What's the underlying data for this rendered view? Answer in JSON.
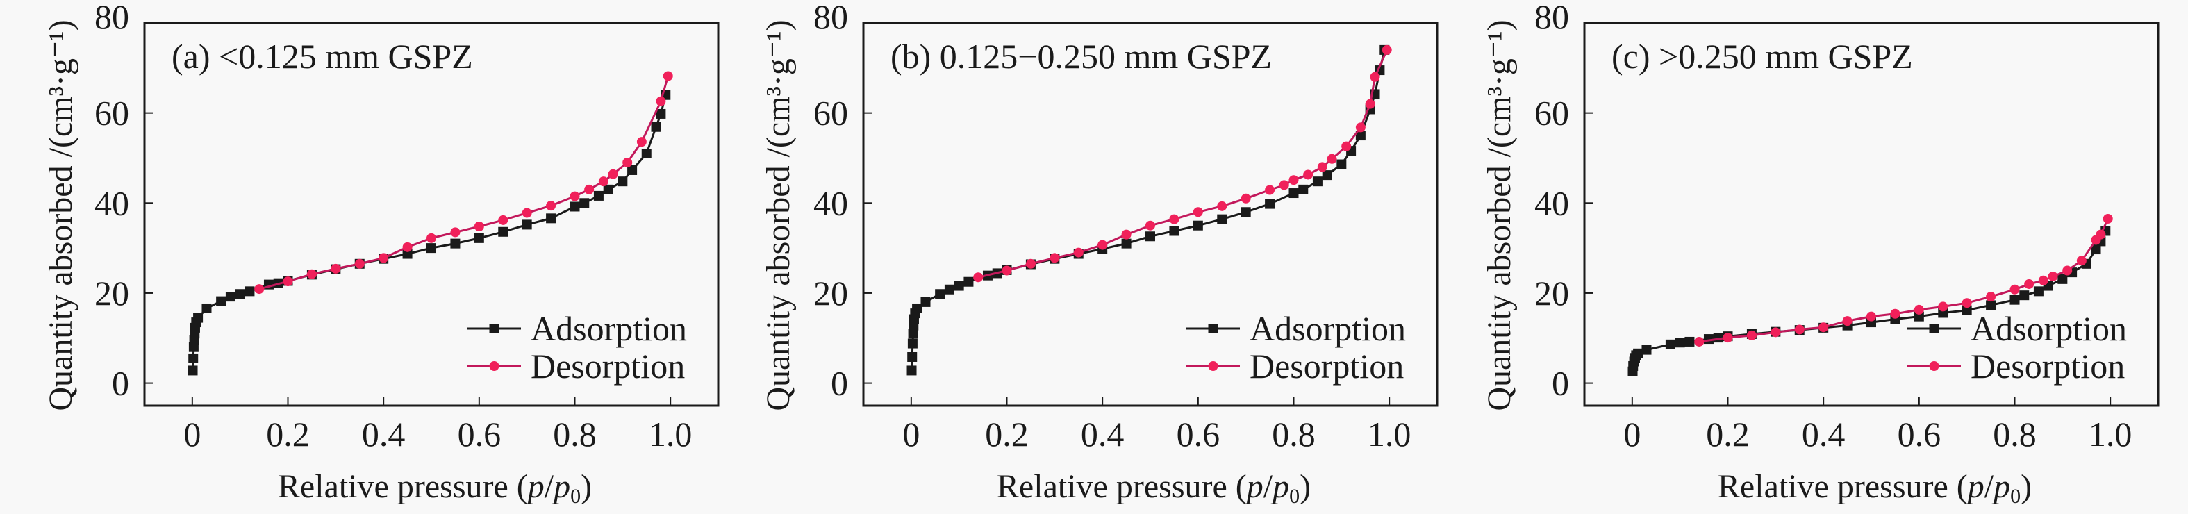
{
  "figure": {
    "colors": {
      "adsorption_line": "#1a1a1a",
      "adsorption_marker": "#1a1a1a",
      "desorption_line": "#c2185b",
      "desorption_marker": "#f0205a",
      "frame": "#1a1a1a"
    }
  },
  "chart_data": [
    {
      "type": "line",
      "panel": "a",
      "title": "(a) <0.125 mm GSPZ",
      "xlabel": "Relative pressure (p/p0)",
      "xlabel_parts": {
        "prefix": "Relative pressure (",
        "p": "p",
        "slash": "/",
        "p0": "p",
        "sub": "0",
        "suffix": ")"
      },
      "ylabel": "Quantity absorbed /(cm³·g⁻¹)",
      "xlim": [
        -0.1,
        1.1
      ],
      "ylim": [
        -5,
        80
      ],
      "xticks": [
        0,
        0.2,
        0.4,
        0.6,
        0.8,
        1.0
      ],
      "xtick_labels": [
        "0",
        "0.2",
        "0.4",
        "0.6",
        "0.8",
        "1.0"
      ],
      "yticks": [
        0,
        20,
        40,
        60,
        80
      ],
      "ytick_labels": [
        "0",
        "20",
        "40",
        "60",
        "80"
      ],
      "grid": false,
      "legend_position": "bottom-right",
      "series": [
        {
          "name": "Adsorption",
          "marker": "square",
          "x": [
            0.001,
            0.002,
            0.003,
            0.004,
            0.005,
            0.006,
            0.008,
            0.012,
            0.03,
            0.06,
            0.08,
            0.1,
            0.12,
            0.16,
            0.18,
            0.2,
            0.25,
            0.3,
            0.35,
            0.4,
            0.45,
            0.5,
            0.55,
            0.6,
            0.65,
            0.7,
            0.75,
            0.8,
            0.82,
            0.85,
            0.87,
            0.9,
            0.92,
            0.95,
            0.97,
            0.98,
            0.99
          ],
          "y": [
            2.8,
            5.5,
            8.0,
            9.5,
            11.0,
            12.3,
            13.5,
            14.5,
            16.6,
            18.2,
            19.2,
            19.8,
            20.4,
            21.9,
            22.2,
            22.7,
            24.1,
            25.3,
            26.5,
            27.6,
            28.7,
            30.0,
            31.0,
            32.2,
            33.6,
            35.2,
            36.6,
            39.2,
            40.0,
            41.6,
            43.0,
            44.8,
            47.3,
            51.0,
            56.9,
            59.8,
            64.0
          ]
        },
        {
          "name": "Desorption",
          "marker": "circle",
          "x": [
            0.995,
            0.98,
            0.94,
            0.91,
            0.88,
            0.86,
            0.83,
            0.8,
            0.75,
            0.7,
            0.65,
            0.6,
            0.55,
            0.5,
            0.45,
            0.4,
            0.35,
            0.3,
            0.25,
            0.2,
            0.14
          ],
          "y": [
            68.2,
            62.6,
            53.6,
            49.0,
            46.4,
            44.8,
            43.0,
            41.5,
            39.4,
            37.8,
            36.2,
            34.8,
            33.5,
            32.2,
            30.2,
            27.8,
            26.5,
            25.4,
            24.2,
            22.6,
            20.9
          ]
        }
      ]
    },
    {
      "type": "line",
      "panel": "b",
      "title": "(b) 0.125−0.250 mm GSPZ",
      "xlabel": "Relative pressure (p/p0)",
      "xlabel_parts": {
        "prefix": "Relative pressure (",
        "p": "p",
        "slash": "/",
        "p0": "p",
        "sub": "0",
        "suffix": ")"
      },
      "ylabel": "Quantity absorbed /(cm³·g⁻¹)",
      "xlim": [
        -0.1,
        1.1
      ],
      "ylim": [
        -5,
        80
      ],
      "xticks": [
        0,
        0.2,
        0.4,
        0.6,
        0.8,
        1.0
      ],
      "xtick_labels": [
        "0",
        "0.2",
        "0.4",
        "0.6",
        "0.8",
        "1.0"
      ],
      "yticks": [
        0,
        20,
        40,
        60,
        80
      ],
      "ytick_labels": [
        "0",
        "20",
        "40",
        "60",
        "80"
      ],
      "grid": false,
      "legend_position": "bottom-right",
      "series": [
        {
          "name": "Adsorption",
          "marker": "square",
          "x": [
            0.001,
            0.002,
            0.003,
            0.004,
            0.005,
            0.006,
            0.008,
            0.012,
            0.03,
            0.06,
            0.08,
            0.1,
            0.12,
            0.16,
            0.18,
            0.2,
            0.25,
            0.3,
            0.35,
            0.4,
            0.45,
            0.5,
            0.55,
            0.6,
            0.65,
            0.7,
            0.75,
            0.8,
            0.82,
            0.85,
            0.87,
            0.9,
            0.92,
            0.94,
            0.96,
            0.97,
            0.98,
            0.99
          ],
          "y": [
            2.8,
            5.8,
            8.8,
            11.0,
            12.8,
            14.2,
            15.5,
            16.6,
            18.0,
            19.8,
            20.8,
            21.6,
            22.5,
            23.9,
            24.4,
            25.1,
            26.4,
            27.6,
            28.7,
            29.8,
            31.0,
            32.6,
            33.8,
            35.0,
            36.4,
            38.0,
            39.8,
            42.2,
            43.0,
            44.8,
            46.2,
            48.6,
            51.6,
            55.0,
            60.8,
            64.2,
            69.5,
            74.0
          ]
        },
        {
          "name": "Desorption",
          "marker": "circle",
          "x": [
            0.995,
            0.97,
            0.96,
            0.94,
            0.91,
            0.88,
            0.86,
            0.83,
            0.8,
            0.78,
            0.75,
            0.7,
            0.65,
            0.6,
            0.55,
            0.5,
            0.45,
            0.4,
            0.35,
            0.3,
            0.25,
            0.2,
            0.14
          ],
          "y": [
            74.0,
            68.0,
            62.0,
            56.8,
            52.6,
            49.8,
            48.0,
            46.3,
            45.1,
            44.0,
            42.9,
            41.0,
            39.3,
            38.0,
            36.4,
            35.0,
            33.0,
            30.7,
            29.0,
            27.8,
            26.5,
            25.0,
            23.5
          ]
        }
      ]
    },
    {
      "type": "line",
      "panel": "c",
      "title": "(c) >0.250 mm GSPZ",
      "xlabel": "Relative pressure (p/p0)",
      "xlabel_parts": {
        "prefix": "Relative pressure (",
        "p": "p",
        "slash": "/",
        "p0": "p",
        "sub": "0",
        "suffix": ")"
      },
      "ylabel": "Quantity absorbed /(cm³·g⁻¹)",
      "xlim": [
        -0.1,
        1.1
      ],
      "ylim": [
        -5,
        80
      ],
      "xticks": [
        0,
        0.2,
        0.4,
        0.6,
        0.8,
        1.0
      ],
      "xtick_labels": [
        "0",
        "0.2",
        "0.4",
        "0.6",
        "0.8",
        "1.0"
      ],
      "yticks": [
        0,
        20,
        40,
        60,
        80
      ],
      "ytick_labels": [
        "0",
        "20",
        "40",
        "60",
        "80"
      ],
      "grid": false,
      "legend_position": "bottom-right",
      "series": [
        {
          "name": "Adsorption",
          "marker": "square",
          "x": [
            0.001,
            0.002,
            0.004,
            0.006,
            0.008,
            0.012,
            0.03,
            0.08,
            0.1,
            0.12,
            0.16,
            0.18,
            0.2,
            0.25,
            0.3,
            0.35,
            0.4,
            0.45,
            0.5,
            0.55,
            0.6,
            0.65,
            0.7,
            0.75,
            0.8,
            0.82,
            0.85,
            0.87,
            0.9,
            0.92,
            0.95,
            0.97,
            0.98,
            0.99
          ],
          "y": [
            2.6,
            3.8,
            4.8,
            5.6,
            6.2,
            6.6,
            7.4,
            8.6,
            9.0,
            9.2,
            9.8,
            10.1,
            10.4,
            10.9,
            11.4,
            11.8,
            12.3,
            12.8,
            13.5,
            14.2,
            14.8,
            15.6,
            16.2,
            17.3,
            18.5,
            19.5,
            20.4,
            21.6,
            23.1,
            24.6,
            26.5,
            29.7,
            31.5,
            33.8
          ]
        },
        {
          "name": "Desorption",
          "marker": "circle",
          "x": [
            0.995,
            0.98,
            0.97,
            0.94,
            0.91,
            0.88,
            0.86,
            0.83,
            0.8,
            0.75,
            0.7,
            0.65,
            0.6,
            0.55,
            0.5,
            0.45,
            0.4,
            0.35,
            0.3,
            0.25,
            0.2,
            0.14
          ],
          "y": [
            36.5,
            33.0,
            31.8,
            27.2,
            25.0,
            23.7,
            22.8,
            22.0,
            20.8,
            19.2,
            17.8,
            17.0,
            16.3,
            15.4,
            14.8,
            13.8,
            12.4,
            11.9,
            11.3,
            10.6,
            10.1,
            9.2
          ]
        }
      ]
    }
  ]
}
